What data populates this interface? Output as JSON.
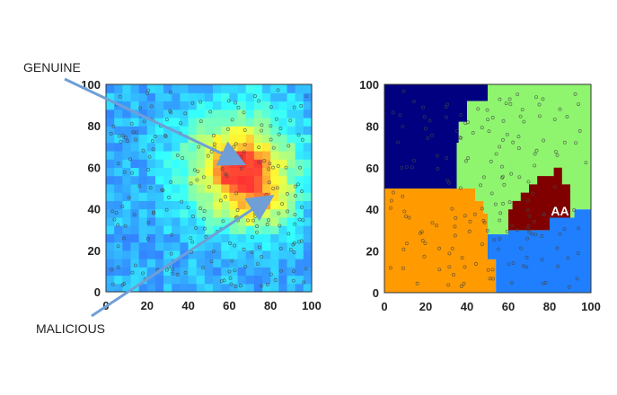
{
  "annotations": {
    "genuine": "GENUINE",
    "malicious": "MALICIOUS",
    "aa": "AA"
  },
  "colors": {
    "arrow": "#6f9fd6",
    "point_stroke": "#444444",
    "zone_navy": "#000080",
    "zone_light_green": "#8ff56f",
    "zone_orange": "#ff9a00",
    "zone_blue": "#1f7fff",
    "zone_dark_red": "#800000"
  },
  "chart_data": [
    {
      "type": "heatmap",
      "title": "",
      "xlabel": "",
      "ylabel": "",
      "xlim": [
        0,
        100
      ],
      "ylim": [
        0,
        100
      ],
      "xticks": [
        "0",
        "20",
        "40",
        "60",
        "80",
        "100"
      ],
      "yticks": [
        "0",
        "20",
        "40",
        "60",
        "80",
        "100"
      ],
      "grid": false,
      "colormap": "jet",
      "peak": {
        "x": 65,
        "y": 60
      },
      "secondary_peak": {
        "x": 76,
        "y": 44
      },
      "points": "scattered sample positions across 0-100 x 0-100"
    },
    {
      "type": "heatmap",
      "title": "",
      "xlabel": "",
      "ylabel": "",
      "xlim": [
        0,
        100
      ],
      "ylim": [
        0,
        100
      ],
      "xticks": [
        "0",
        "20",
        "40",
        "60",
        "80",
        "100"
      ],
      "yticks": [
        "0",
        "20",
        "40",
        "60",
        "80",
        "100"
      ],
      "grid": false,
      "regions": [
        {
          "color": "navy",
          "polygon": [
            [
              0,
              100
            ],
            [
              50,
              100
            ],
            [
              50,
              92
            ],
            [
              40,
              92
            ],
            [
              40,
              82
            ],
            [
              36,
              82
            ],
            [
              36,
              72
            ],
            [
              35,
              72
            ],
            [
              35,
              50
            ],
            [
              0,
              50
            ]
          ]
        },
        {
          "color": "light-green",
          "polygon": [
            [
              50,
              100
            ],
            [
              100,
              100
            ],
            [
              100,
              40
            ],
            [
              92,
              40
            ],
            [
              92,
              36
            ],
            [
              80,
              36
            ],
            [
              80,
              30
            ],
            [
              60,
              30
            ],
            [
              60,
              28
            ],
            [
              50,
              28
            ],
            [
              50,
              38
            ],
            [
              48,
              38
            ],
            [
              48,
              44
            ],
            [
              44,
              44
            ],
            [
              44,
              50
            ],
            [
              35,
              50
            ],
            [
              35,
              72
            ],
            [
              36,
              72
            ],
            [
              36,
              82
            ],
            [
              40,
              82
            ],
            [
              40,
              92
            ],
            [
              50,
              92
            ]
          ]
        },
        {
          "color": "orange",
          "polygon": [
            [
              0,
              50
            ],
            [
              44,
              50
            ],
            [
              44,
              44
            ],
            [
              48,
              44
            ],
            [
              48,
              38
            ],
            [
              50,
              38
            ],
            [
              50,
              16
            ],
            [
              54,
              16
            ],
            [
              54,
              0
            ],
            [
              0,
              0
            ]
          ]
        },
        {
          "color": "blue",
          "polygon": [
            [
              54,
              0
            ],
            [
              100,
              0
            ],
            [
              100,
              40
            ],
            [
              92,
              40
            ],
            [
              92,
              36
            ],
            [
              80,
              36
            ],
            [
              80,
              30
            ],
            [
              60,
              30
            ],
            [
              60,
              28
            ],
            [
              50,
              28
            ],
            [
              50,
              16
            ],
            [
              54,
              16
            ]
          ]
        },
        {
          "color": "dark-red",
          "polygon": [
            [
              60,
              30
            ],
            [
              80,
              30
            ],
            [
              80,
              36
            ],
            [
              90,
              36
            ],
            [
              90,
              52
            ],
            [
              86,
              52
            ],
            [
              86,
              60
            ],
            [
              82,
              60
            ],
            [
              82,
              56
            ],
            [
              74,
              56
            ],
            [
              74,
              52
            ],
            [
              70,
              52
            ],
            [
              70,
              48
            ],
            [
              66,
              48
            ],
            [
              66,
              44
            ],
            [
              62,
              44
            ],
            [
              62,
              40
            ],
            [
              60,
              40
            ]
          ]
        }
      ],
      "annotation": {
        "text": "AA",
        "x": 85,
        "y": 37
      }
    }
  ]
}
